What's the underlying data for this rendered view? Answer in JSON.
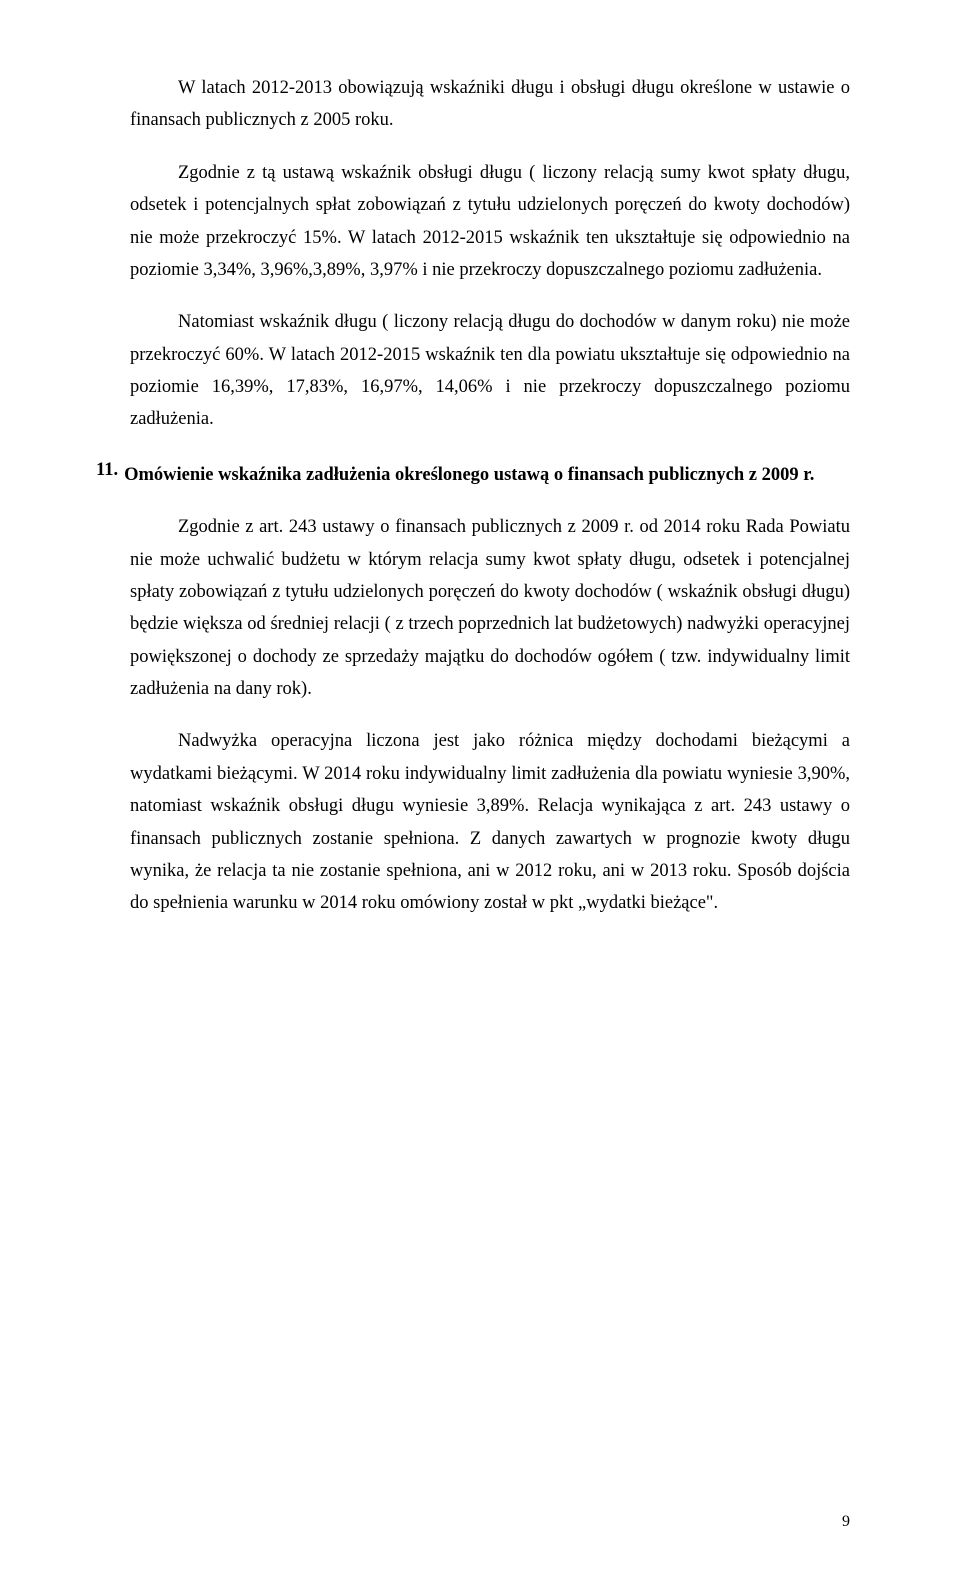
{
  "para1": "W latach 2012-2013 obowiązują wskaźniki długu i obsługi długu określone w ustawie o finansach publicznych z 2005 roku.",
  "para2": "Zgodnie z tą ustawą wskaźnik obsługi długu ( liczony relacją sumy kwot spłaty długu, odsetek i potencjalnych spłat zobowiązań z tytułu udzielonych poręczeń do kwoty dochodów) nie może przekroczyć 15%. W latach 2012-2015 wskaźnik ten ukształtuje się odpowiednio na poziomie 3,34%, 3,96%,3,89%, 3,97% i nie przekroczy dopuszczalnego poziomu zadłużenia.",
  "para3": "Natomiast wskaźnik długu ( liczony relacją długu do dochodów w danym roku) nie może przekroczyć 60%. W latach 2012-2015 wskaźnik ten dla powiatu ukształtuje się odpowiednio na poziomie 16,39%, 17,83%, 16,97%, 14,06% i nie przekroczy dopuszczalnego poziomu zadłużenia.",
  "heading": {
    "num": "11.",
    "text": "Omówienie wskaźnika zadłużenia określonego ustawą o finansach publicznych z 2009 r."
  },
  "para4": "Zgodnie z art. 243 ustawy o finansach publicznych z 2009 r. od 2014 roku Rada Powiatu nie może uchwalić budżetu w którym relacja sumy kwot spłaty długu, odsetek i potencjalnej spłaty zobowiązań z tytułu udzielonych poręczeń do kwoty dochodów ( wskaźnik obsługi długu) będzie większa od średniej relacji ( z trzech poprzednich lat budżetowych)  nadwyżki operacyjnej powiększonej o dochody ze sprzedaży majątku do dochodów ogółem ( tzw. indywidualny limit zadłużenia na dany rok).",
  "para5": "Nadwyżka operacyjna liczona jest jako różnica między dochodami bieżącymi a wydatkami bieżącymi. W 2014 roku indywidualny limit zadłużenia dla powiatu wyniesie 3,90%, natomiast wskaźnik obsługi długu wyniesie 3,89%.  Relacja wynikająca z art. 243 ustawy o finansach publicznych  zostanie spełniona. Z danych zawartych w prognozie kwoty długu wynika, że relacja ta nie zostanie spełniona, ani w 2012 roku, ani w 2013 roku. Sposób dojścia do spełnienia warunku w 2014 roku omówiony został w pkt „wydatki bieżące\".",
  "pageNumber": "9"
}
